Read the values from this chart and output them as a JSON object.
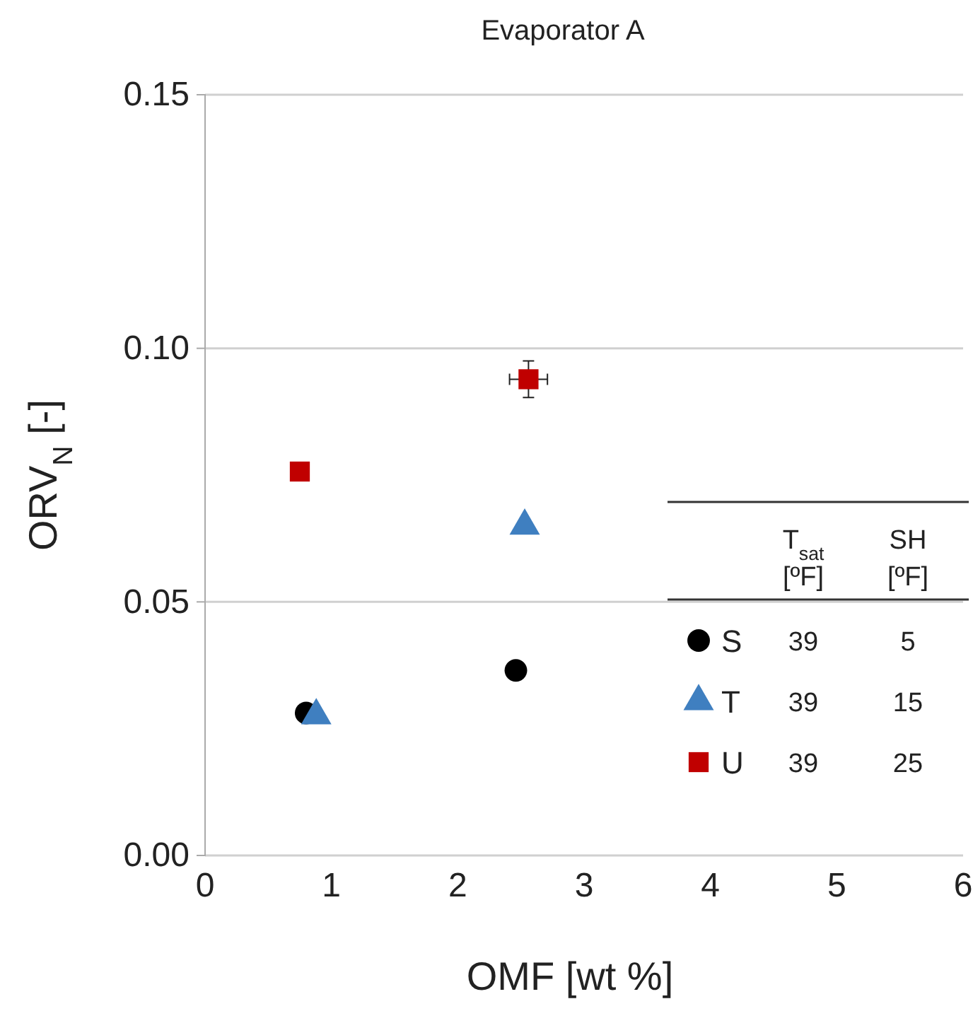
{
  "chart_data": {
    "type": "scatter",
    "title": "Evaporator A",
    "xlabel": "OMF [wt %]",
    "ylabel": "ORV$_{N}$ [-]",
    "xlim": [
      0,
      6
    ],
    "xticks": [
      0,
      1,
      2,
      3,
      4,
      5,
      6
    ],
    "ylim": [
      0,
      0.15
    ],
    "yticks": [
      {
        "value": 0,
        "label": "0.00"
      },
      {
        "value": 0.05,
        "label": "0.05"
      },
      {
        "value": 0.1,
        "label": "0.10"
      },
      {
        "value": 0.15,
        "label": "0.15"
      }
    ],
    "grid": "y",
    "legend": "right",
    "series": [
      {
        "name": "S",
        "color": "#000000",
        "marker": "circle",
        "x": [
          0.8,
          2.46
        ],
        "values": [
          0.0281,
          0.0365
        ]
      },
      {
        "name": "T",
        "color": "#3f7fc0",
        "marker": "triangle",
        "x": [
          0.88,
          2.53
        ],
        "values": [
          0.0276,
          0.065
        ]
      },
      {
        "name": "U",
        "color": "#c00000",
        "marker": "square",
        "x": [
          0.75,
          2.56
        ],
        "values": [
          0.0757,
          0.0939
        ],
        "errors": [
          null,
          0.0036
        ],
        "xerrors": [
          null,
          0.15
        ]
      }
    ],
    "annotations": [
      "T$_{sat}$ [ºF]",
      "SH [ºF]",
      "39",
      "5",
      "39",
      "15",
      "39",
      "25"
    ]
  }
}
